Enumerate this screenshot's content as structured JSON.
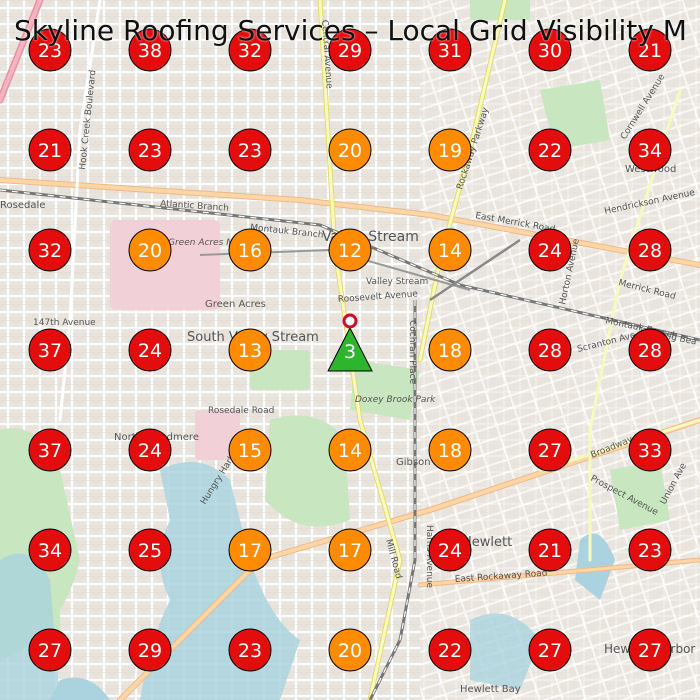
{
  "title": "Skyline Roofing Services – Local Grid Visibility M",
  "colors": {
    "red": "#e40d0d",
    "orange": "#ff8c00",
    "green": "#2db52d"
  },
  "grid": [
    [
      23,
      38,
      32,
      29,
      31,
      30,
      21
    ],
    [
      21,
      23,
      23,
      20,
      19,
      22,
      34
    ],
    [
      32,
      20,
      16,
      12,
      14,
      24,
      28
    ],
    [
      37,
      24,
      13,
      "3",
      18,
      28,
      28
    ],
    [
      37,
      24,
      15,
      14,
      18,
      27,
      33
    ],
    [
      34,
      25,
      17,
      17,
      24,
      21,
      23
    ],
    [
      27,
      29,
      23,
      20,
      22,
      27,
      27
    ]
  ],
  "business_marker": {
    "label": "3",
    "row": 3,
    "col": 3
  },
  "map_labels": {
    "valley_stream": "Valley Stream",
    "valley_stream_station": "Valley Stream",
    "green_acres": "Green Acres",
    "green_acres_mall": "Green Acres Mall",
    "south_valley_stream": "South Valley Stream",
    "rosedale": "Rosedale",
    "westwood": "Westwood",
    "gibson": "Gibson",
    "hewlett": "Hewlett",
    "hewlett_harbor": "Hewlett Harbor",
    "hewlett_bay": "Hewlett Bay",
    "north_woodmere": "North Woodmere",
    "hungry_harbor": "Hungry Harbor",
    "doxey_brook_park": "Doxey Brook Park",
    "atlantic_branch": "Atlantic Branch",
    "montauk_branch": "Montauk Branch",
    "montauk_branch_2": "Montauk Branch",
    "long_beach": "Long Bea",
    "east_merrick_road": "East Merrick Road",
    "merrick_road": "Merrick Road",
    "rockaway_parkway": "Rockaway Parkway",
    "central_avenue": "Central Avenue",
    "roosevelt_avenue": "Roosevelt Avenue",
    "rosedale_road": "Rosedale Road",
    "mill_road": "Mill Road",
    "harris_avenue": "Harris Avenue",
    "cochran_place": "Cochran Place",
    "broadway": "Broadway",
    "east_rockaway_road": "East Rockaway Road",
    "hook_creek_boulevard": "Hook Creek Boulevard",
    "prospect_avenue": "Prospect Avenue",
    "scranton_ave": "Scranton Ave",
    "horton_avenue": "Horton Avenue",
    "147th_avenue": "147th Avenue",
    "hendrickson_avenue": "Hendrickson Avenue",
    "cornwell_avenue": "Cornwell Avenue",
    "union_ave": "Union Ave"
  }
}
